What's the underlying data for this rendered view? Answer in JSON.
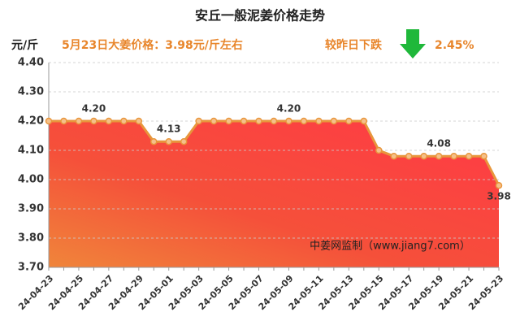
{
  "chart_data": {
    "type": "area",
    "title": "安丘一般泥姜价格走势",
    "unit_label": "元/斤",
    "subtitle": "5月23日大姜价格：3.98元/斤左右",
    "change_label": "较昨日下跌",
    "change_value": "2.45%",
    "watermark": "中姜网监制（www.jiang7.com）",
    "categories": [
      "24-04-23",
      null,
      "24-04-25",
      null,
      "24-04-27",
      null,
      "24-04-29",
      null,
      "24-05-01",
      null,
      "24-05-03",
      null,
      "24-05-05",
      null,
      "24-05-07",
      null,
      "24-05-09",
      null,
      "24-05-11",
      null,
      "24-05-13",
      null,
      "24-05-15",
      null,
      "24-05-17",
      null,
      "24-05-19",
      null,
      "24-05-21",
      null,
      "24-05-23"
    ],
    "values": [
      4.2,
      4.2,
      4.2,
      4.2,
      4.2,
      4.2,
      4.2,
      4.13,
      4.13,
      4.13,
      4.2,
      4.2,
      4.2,
      4.2,
      4.2,
      4.2,
      4.2,
      4.2,
      4.2,
      4.2,
      4.2,
      4.2,
      4.1,
      4.08,
      4.08,
      4.08,
      4.08,
      4.08,
      4.08,
      4.08,
      3.98
    ],
    "value_labels": [
      null,
      null,
      null,
      "4.20",
      null,
      null,
      null,
      null,
      "4.13",
      null,
      null,
      null,
      null,
      null,
      null,
      null,
      "4.20",
      null,
      null,
      null,
      null,
      null,
      null,
      null,
      null,
      null,
      "4.08",
      null,
      null,
      null,
      "3.98"
    ],
    "color": "#e8963c",
    "ylim": [
      3.7,
      4.4
    ],
    "yticks": [
      {
        "value": 3.7,
        "label": "3.70"
      },
      {
        "value": 3.8,
        "label": "3.80"
      },
      {
        "value": 3.9,
        "label": "3.90"
      },
      {
        "value": 4.0,
        "label": "4.00"
      },
      {
        "value": 4.1,
        "label": "4.10"
      },
      {
        "value": 4.2,
        "label": "4.20"
      },
      {
        "value": 4.3,
        "label": "4.30"
      },
      {
        "value": 4.4,
        "label": "4.40"
      }
    ],
    "grid": true
  }
}
